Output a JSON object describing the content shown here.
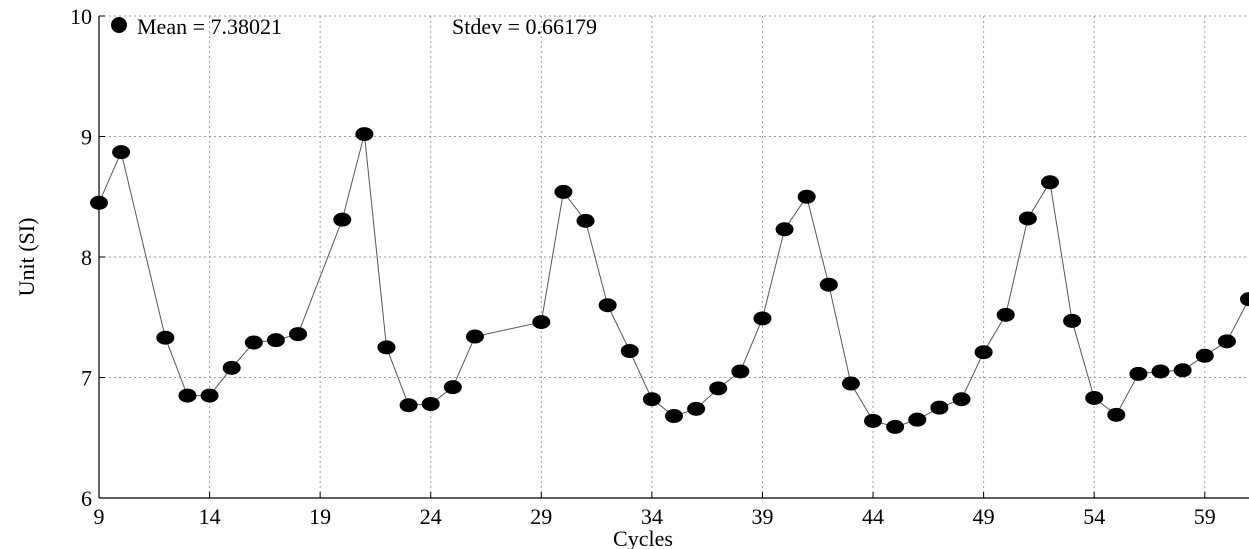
{
  "chart_data": {
    "type": "line",
    "title": "",
    "xlabel": "Cycles",
    "ylabel": "Unit (SI)",
    "xlim": [
      9,
      61
    ],
    "ylim": [
      6,
      10
    ],
    "x_ticks": [
      9,
      14,
      19,
      24,
      29,
      34,
      39,
      44,
      49,
      54,
      59
    ],
    "y_ticks": [
      6,
      7,
      8,
      9,
      10
    ],
    "grid": true,
    "legend": {
      "marker": "filled-circle",
      "mean_label": "Mean = 7.38021",
      "stdev_label": "Stdev = 0.66179"
    },
    "series": [
      {
        "marker": "circle",
        "color": "#000000",
        "points": [
          [
            9,
            8.45
          ],
          [
            10,
            8.87
          ],
          [
            12,
            7.33
          ],
          [
            13,
            6.85
          ],
          [
            14,
            6.85
          ],
          [
            15,
            7.08
          ],
          [
            16,
            7.29
          ],
          [
            17,
            7.31
          ],
          [
            18,
            7.36
          ],
          [
            20,
            8.31
          ],
          [
            21,
            9.02
          ],
          [
            22,
            7.25
          ],
          [
            23,
            6.77
          ],
          [
            24,
            6.78
          ],
          [
            25,
            6.92
          ],
          [
            26,
            7.34
          ],
          [
            29,
            7.46
          ],
          [
            30,
            8.54
          ],
          [
            31,
            8.3
          ],
          [
            32,
            7.6
          ],
          [
            33,
            7.22
          ],
          [
            34,
            6.82
          ],
          [
            35,
            6.68
          ],
          [
            36,
            6.74
          ],
          [
            37,
            6.91
          ],
          [
            38,
            7.05
          ],
          [
            39,
            7.49
          ],
          [
            40,
            8.23
          ],
          [
            41,
            8.5
          ],
          [
            42,
            7.77
          ],
          [
            43,
            6.95
          ],
          [
            44,
            6.64
          ],
          [
            45,
            6.59
          ],
          [
            46,
            6.65
          ],
          [
            47,
            6.75
          ],
          [
            48,
            6.82
          ],
          [
            49,
            7.21
          ],
          [
            50,
            7.52
          ],
          [
            51,
            8.32
          ],
          [
            52,
            8.62
          ],
          [
            53,
            7.47
          ],
          [
            54,
            6.83
          ],
          [
            55,
            6.69
          ],
          [
            56,
            7.03
          ],
          [
            57,
            7.05
          ],
          [
            58,
            7.06
          ],
          [
            59,
            7.18
          ],
          [
            60,
            7.3
          ],
          [
            61,
            7.65
          ]
        ]
      }
    ]
  }
}
